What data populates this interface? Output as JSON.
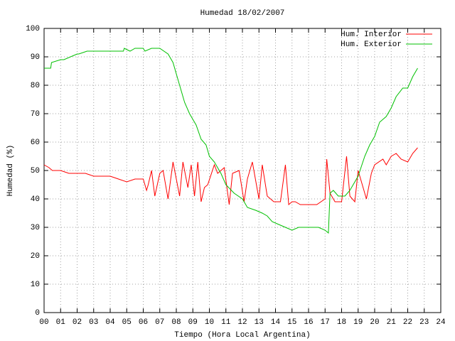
{
  "chart_data": {
    "type": "line",
    "title": "Humedad 18/02/2007",
    "xlabel": "Tiempo (Hora Local Argentina)",
    "ylabel": "Humedad (%)",
    "xlim": [
      0,
      24
    ],
    "ylim": [
      0,
      100
    ],
    "xticks": [
      {
        "value": 0,
        "label": "00"
      },
      {
        "value": 1,
        "label": "01"
      },
      {
        "value": 2,
        "label": "02"
      },
      {
        "value": 3,
        "label": "03"
      },
      {
        "value": 4,
        "label": "04"
      },
      {
        "value": 5,
        "label": "05"
      },
      {
        "value": 6,
        "label": "06"
      },
      {
        "value": 7,
        "label": "07"
      },
      {
        "value": 8,
        "label": "08"
      },
      {
        "value": 9,
        "label": "09"
      },
      10,
      11,
      12,
      13,
      14,
      15,
      16,
      17,
      18,
      19,
      20,
      21,
      22,
      23,
      24
    ],
    "yticks": [
      0,
      10,
      20,
      30,
      40,
      50,
      60,
      70,
      80,
      90,
      100
    ],
    "grid": true,
    "legend": "top-right",
    "series": [
      {
        "name": "Hum. Interior",
        "color": "#ff0000",
        "x": [
          0,
          0.3,
          0.5,
          1.0,
          1.5,
          2.0,
          2.5,
          3.0,
          3.5,
          4.0,
          4.5,
          5.0,
          5.5,
          6.0,
          6.2,
          6.3,
          6.5,
          6.7,
          7.0,
          7.2,
          7.5,
          7.8,
          8.0,
          8.2,
          8.4,
          8.7,
          8.9,
          9.1,
          9.3,
          9.5,
          9.7,
          9.9,
          10.3,
          10.5,
          10.9,
          11.2,
          11.4,
          11.8,
          12.1,
          12.3,
          12.6,
          13.0,
          13.2,
          13.5,
          13.9,
          14.3,
          14.6,
          14.8,
          15.0,
          15.2,
          15.5,
          16.0,
          16.5,
          17.0,
          17.1,
          17.3,
          17.6,
          18.0,
          18.3,
          18.5,
          18.8,
          19.0,
          19.2,
          19.5,
          19.8,
          20.0,
          20.5,
          20.7,
          21.0,
          21.3,
          21.6,
          22.0,
          22.3,
          22.6
        ],
        "values": [
          52,
          51,
          50,
          50,
          49,
          49,
          49,
          48,
          48,
          48,
          47,
          46,
          47,
          47,
          43,
          45,
          50,
          41,
          49,
          50,
          40,
          53,
          47,
          41,
          53,
          44,
          52,
          41,
          53,
          39,
          44,
          45,
          52,
          49,
          51,
          38,
          49,
          50,
          39,
          47,
          53,
          40,
          52,
          41,
          39,
          39,
          52,
          38,
          39,
          39,
          38,
          38,
          38,
          40,
          54,
          42,
          39,
          39,
          55,
          41,
          39,
          50,
          46,
          40,
          49,
          52,
          54,
          52,
          55,
          56,
          54,
          53,
          56,
          58
        ]
      },
      {
        "name": "Hum. Exterior",
        "color": "#00c000",
        "x": [
          0,
          0.4,
          0.45,
          1.0,
          1.2,
          2.0,
          2.1,
          2.6,
          3.0,
          4.0,
          4.8,
          4.85,
          5.2,
          5.5,
          6.0,
          6.1,
          6.5,
          7.0,
          7.5,
          7.8,
          8.2,
          8.5,
          8.8,
          9.2,
          9.5,
          9.8,
          10.0,
          10.3,
          10.7,
          11.0,
          11.5,
          12.0,
          12.3,
          12.8,
          13.2,
          13.5,
          13.8,
          14.2,
          14.6,
          15.0,
          15.4,
          15.8,
          16.2,
          16.6,
          17.0,
          17.2,
          17.3,
          17.5,
          17.8,
          18.2,
          18.5,
          19.0,
          19.4,
          19.7,
          20.0,
          20.3,
          20.7,
          21.0,
          21.3,
          21.7,
          22.0,
          22.3,
          22.6
        ],
        "values": [
          86,
          86,
          88,
          89,
          89,
          91,
          91,
          92,
          92,
          92,
          92,
          93,
          92,
          93,
          93,
          92,
          93,
          93,
          91,
          88,
          80,
          74,
          70,
          66,
          61,
          59,
          55,
          53,
          49,
          45,
          42,
          40,
          37,
          36,
          35,
          34,
          32,
          31,
          30,
          29,
          30,
          30,
          30,
          30,
          29,
          28,
          42,
          43,
          41,
          41,
          43,
          48,
          55,
          59,
          62,
          67,
          69,
          72,
          76,
          79,
          79,
          83,
          86
        ]
      }
    ]
  }
}
